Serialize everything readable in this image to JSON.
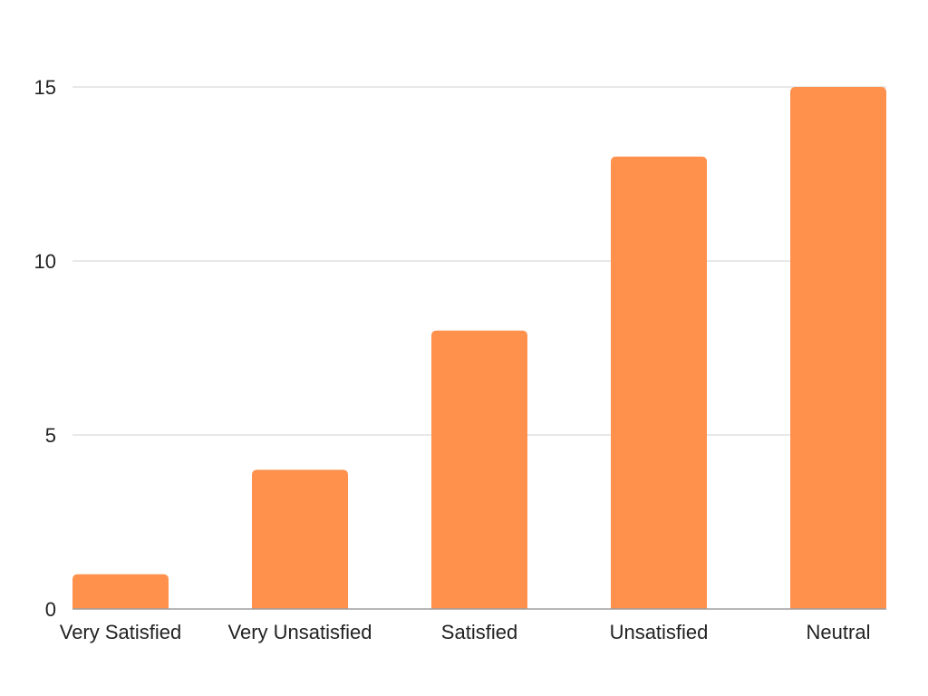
{
  "chart_data": {
    "type": "bar",
    "categories": [
      "Very Satisfied",
      "Very Unsatisfied",
      "Satisfied",
      "Unsatisfied",
      "Neutral"
    ],
    "values": [
      1,
      4,
      8,
      13,
      15
    ],
    "title": "",
    "xlabel": "",
    "ylabel": "",
    "ylim": [
      0,
      15
    ],
    "yticks": [
      0,
      5,
      10,
      15
    ],
    "grid": true,
    "legend": "none",
    "colors": {
      "bar": "#FF914D",
      "grid": "#d9d9d9",
      "axis": "#9e9e9e",
      "text": "#222222"
    }
  }
}
